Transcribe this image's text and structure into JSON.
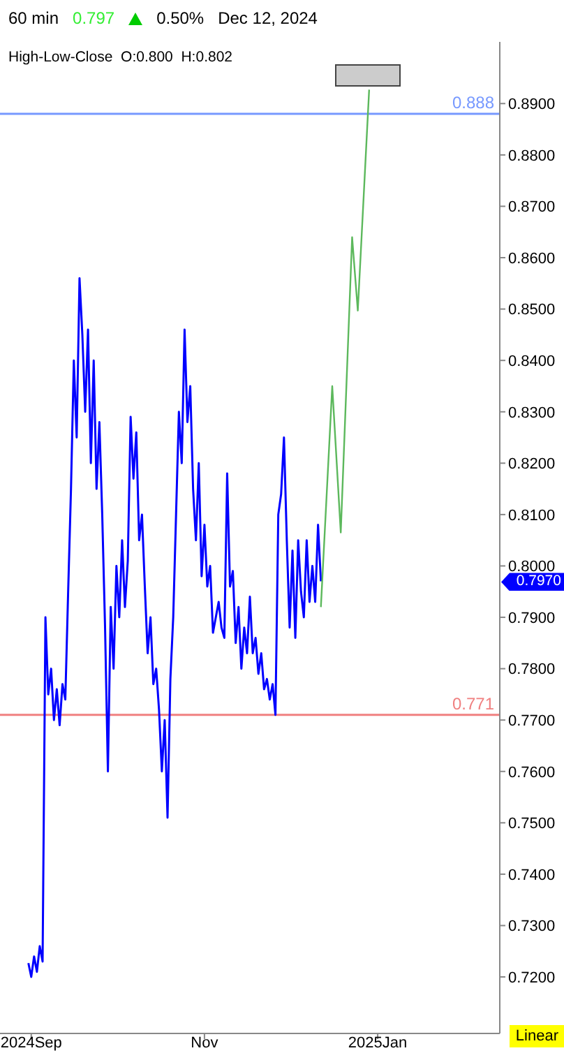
{
  "chart_data": {
    "type": "line",
    "title": "60 min",
    "subtitle": "High-Low-Close  O:0.800  H:0.802",
    "annotations": [
      "0.797",
      "0.50%",
      "Dec 12, 2024",
      "Linear",
      "0.7970"
    ],
    "xlim": [
      "2024-08-21",
      "2025-02-13"
    ],
    "xticks": [
      {
        "value": "2024-09-01",
        "label": "2024Sep"
      },
      {
        "value": "2024-11-01",
        "label": "Nov"
      },
      {
        "value": "2025-01-01",
        "label": "2025Jan"
      }
    ],
    "ylim": [
      0.709,
      0.902
    ],
    "yticks": [
      {
        "value": 0.72,
        "label": "0.7200"
      },
      {
        "value": 0.73,
        "label": "0.7300"
      },
      {
        "value": 0.74,
        "label": "0.7400"
      },
      {
        "value": 0.75,
        "label": "0.7500"
      },
      {
        "value": 0.76,
        "label": "0.7600"
      },
      {
        "value": 0.77,
        "label": "0.7700"
      },
      {
        "value": 0.78,
        "label": "0.7800"
      },
      {
        "value": 0.79,
        "label": "0.7900"
      },
      {
        "value": 0.8,
        "label": "0.8000"
      },
      {
        "value": 0.81,
        "label": "0.8100"
      },
      {
        "value": 0.82,
        "label": "0.8200"
      },
      {
        "value": 0.83,
        "label": "0.8300"
      },
      {
        "value": 0.84,
        "label": "0.8400"
      },
      {
        "value": 0.85,
        "label": "0.8500"
      },
      {
        "value": 0.86,
        "label": "0.8600"
      },
      {
        "value": 0.87,
        "label": "0.8700"
      },
      {
        "value": 0.88,
        "label": "0.8800"
      },
      {
        "value": 0.89,
        "label": "0.8900"
      }
    ],
    "ref_lines": [
      {
        "axis": "y",
        "value": 0.888,
        "label": "0.888",
        "color": "#7799ff"
      },
      {
        "axis": "y",
        "value": 0.771,
        "label": "0.771",
        "color": "#f08080"
      }
    ],
    "series": [
      {
        "color": "#0000ff",
        "x": [
          "2024-08-31",
          "2024-09-01",
          "2024-09-02",
          "2024-09-03",
          "2024-09-04",
          "2024-09-05",
          "2024-09-06",
          "2024-09-07",
          "2024-09-08",
          "2024-09-09",
          "2024-09-10",
          "2024-09-11",
          "2024-09-12",
          "2024-09-13",
          "2024-09-14",
          "2024-09-15",
          "2024-09-16",
          "2024-09-17",
          "2024-09-18",
          "2024-09-19",
          "2024-09-20",
          "2024-09-21",
          "2024-09-22",
          "2024-09-23",
          "2024-09-24",
          "2024-09-25",
          "2024-09-26",
          "2024-09-27",
          "2024-09-28",
          "2024-09-29",
          "2024-09-30",
          "2024-10-01",
          "2024-10-02",
          "2024-10-03",
          "2024-10-04",
          "2024-10-05",
          "2024-10-06",
          "2024-10-07",
          "2024-10-08",
          "2024-10-09",
          "2024-10-10",
          "2024-10-11",
          "2024-10-12",
          "2024-10-13",
          "2024-10-14",
          "2024-10-15",
          "2024-10-16",
          "2024-10-17",
          "2024-10-18",
          "2024-10-19",
          "2024-10-20",
          "2024-10-21",
          "2024-10-22",
          "2024-10-23",
          "2024-10-24",
          "2024-10-25",
          "2024-10-26",
          "2024-10-27",
          "2024-10-28",
          "2024-10-29",
          "2024-10-30",
          "2024-10-31",
          "2024-11-01",
          "2024-11-02",
          "2024-11-03",
          "2024-11-04",
          "2024-11-05",
          "2024-11-06",
          "2024-11-07",
          "2024-11-08",
          "2024-11-09",
          "2024-11-10",
          "2024-11-11",
          "2024-11-12",
          "2024-11-13",
          "2024-11-14",
          "2024-11-15",
          "2024-11-16",
          "2024-11-17",
          "2024-11-18",
          "2024-11-19",
          "2024-11-20",
          "2024-11-21",
          "2024-11-22",
          "2024-11-23",
          "2024-11-24",
          "2024-11-25",
          "2024-11-26",
          "2024-11-27",
          "2024-11-28",
          "2024-11-29",
          "2024-11-30",
          "2024-12-01",
          "2024-12-02",
          "2024-12-03",
          "2024-12-04",
          "2024-12-05",
          "2024-12-06",
          "2024-12-07",
          "2024-12-08",
          "2024-12-09",
          "2024-12-10",
          "2024-12-11",
          "2024-12-12"
        ],
        "values": [
          0.7227,
          0.72,
          0.724,
          0.721,
          0.726,
          0.723,
          0.79,
          0.775,
          0.78,
          0.77,
          0.776,
          0.769,
          0.777,
          0.774,
          0.795,
          0.815,
          0.84,
          0.825,
          0.856,
          0.845,
          0.83,
          0.846,
          0.82,
          0.84,
          0.815,
          0.828,
          0.81,
          0.788,
          0.76,
          0.792,
          0.78,
          0.8,
          0.79,
          0.805,
          0.792,
          0.801,
          0.829,
          0.817,
          0.826,
          0.805,
          0.81,
          0.796,
          0.783,
          0.79,
          0.777,
          0.78,
          0.772,
          0.76,
          0.77,
          0.751,
          0.778,
          0.79,
          0.81,
          0.83,
          0.82,
          0.846,
          0.828,
          0.835,
          0.815,
          0.805,
          0.82,
          0.798,
          0.808,
          0.796,
          0.8,
          0.787,
          0.79,
          0.793,
          0.788,
          0.786,
          0.818,
          0.796,
          0.799,
          0.785,
          0.792,
          0.78,
          0.788,
          0.783,
          0.794,
          0.783,
          0.786,
          0.779,
          0.783,
          0.776,
          0.778,
          0.774,
          0.777,
          0.771,
          0.81,
          0.814,
          0.825,
          0.805,
          0.788,
          0.803,
          0.786,
          0.805,
          0.795,
          0.79,
          0.805,
          0.793,
          0.8,
          0.793,
          0.808,
          0.797
        ]
      },
      {
        "color": "#5cb85c",
        "x": [
          "2024-12-12",
          "2024-12-16",
          "2024-12-19",
          "2024-12-23",
          "2024-12-25",
          "2024-12-29"
        ],
        "values": [
          0.792,
          0.835,
          0.8065,
          0.864,
          0.8497,
          0.8927
        ]
      }
    ]
  }
}
